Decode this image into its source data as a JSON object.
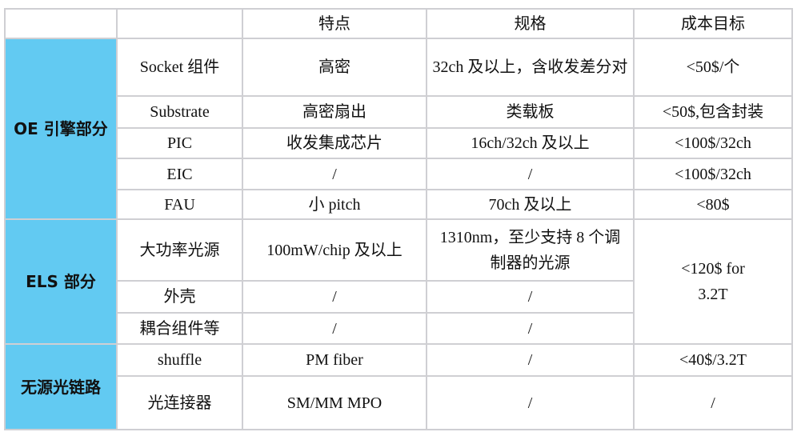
{
  "header": [
    "",
    "",
    "特点",
    "规格",
    "成本目标"
  ],
  "categories": {
    "oe": "OE 引擎部分",
    "els": "ELS 部分",
    "passive": "无源光链路"
  },
  "rows": [
    {
      "item": "Socket 组件",
      "feature": "高密",
      "spec": "32ch 及以上，含收发差分对",
      "cost": "<50$/个"
    },
    {
      "item": "Substrate",
      "feature": "高密扇出",
      "spec": "类载板",
      "cost": "<50$,包含封装"
    },
    {
      "item": "PIC",
      "feature": "收发集成芯片",
      "spec": "16ch/32ch 及以上",
      "cost": "<100$/32ch"
    },
    {
      "item": "EIC",
      "feature": "/",
      "spec": "/",
      "cost": "<100$/32ch"
    },
    {
      "item": "FAU",
      "feature": "小 pitch",
      "spec": "70ch 及以上",
      "cost": "<80$"
    },
    {
      "item": "大功率光源",
      "feature": "100mW/chip 及以上",
      "spec": "1310nm，至少支持 8 个调制器的光源",
      "cost": "<120$ for 3.2T"
    },
    {
      "item": "外壳",
      "feature": "/",
      "spec": "/"
    },
    {
      "item": "耦合组件等",
      "feature": "/",
      "spec": "/"
    },
    {
      "item": "shuffle",
      "feature": "PM fiber",
      "spec": "/",
      "cost": "<40$/3.2T"
    },
    {
      "item": "光连接器",
      "feature": "SM/MM MPO",
      "spec": "/",
      "cost": "/"
    }
  ],
  "colors": {
    "category_bg": "#62caf2",
    "border": "#cfcfd3"
  }
}
